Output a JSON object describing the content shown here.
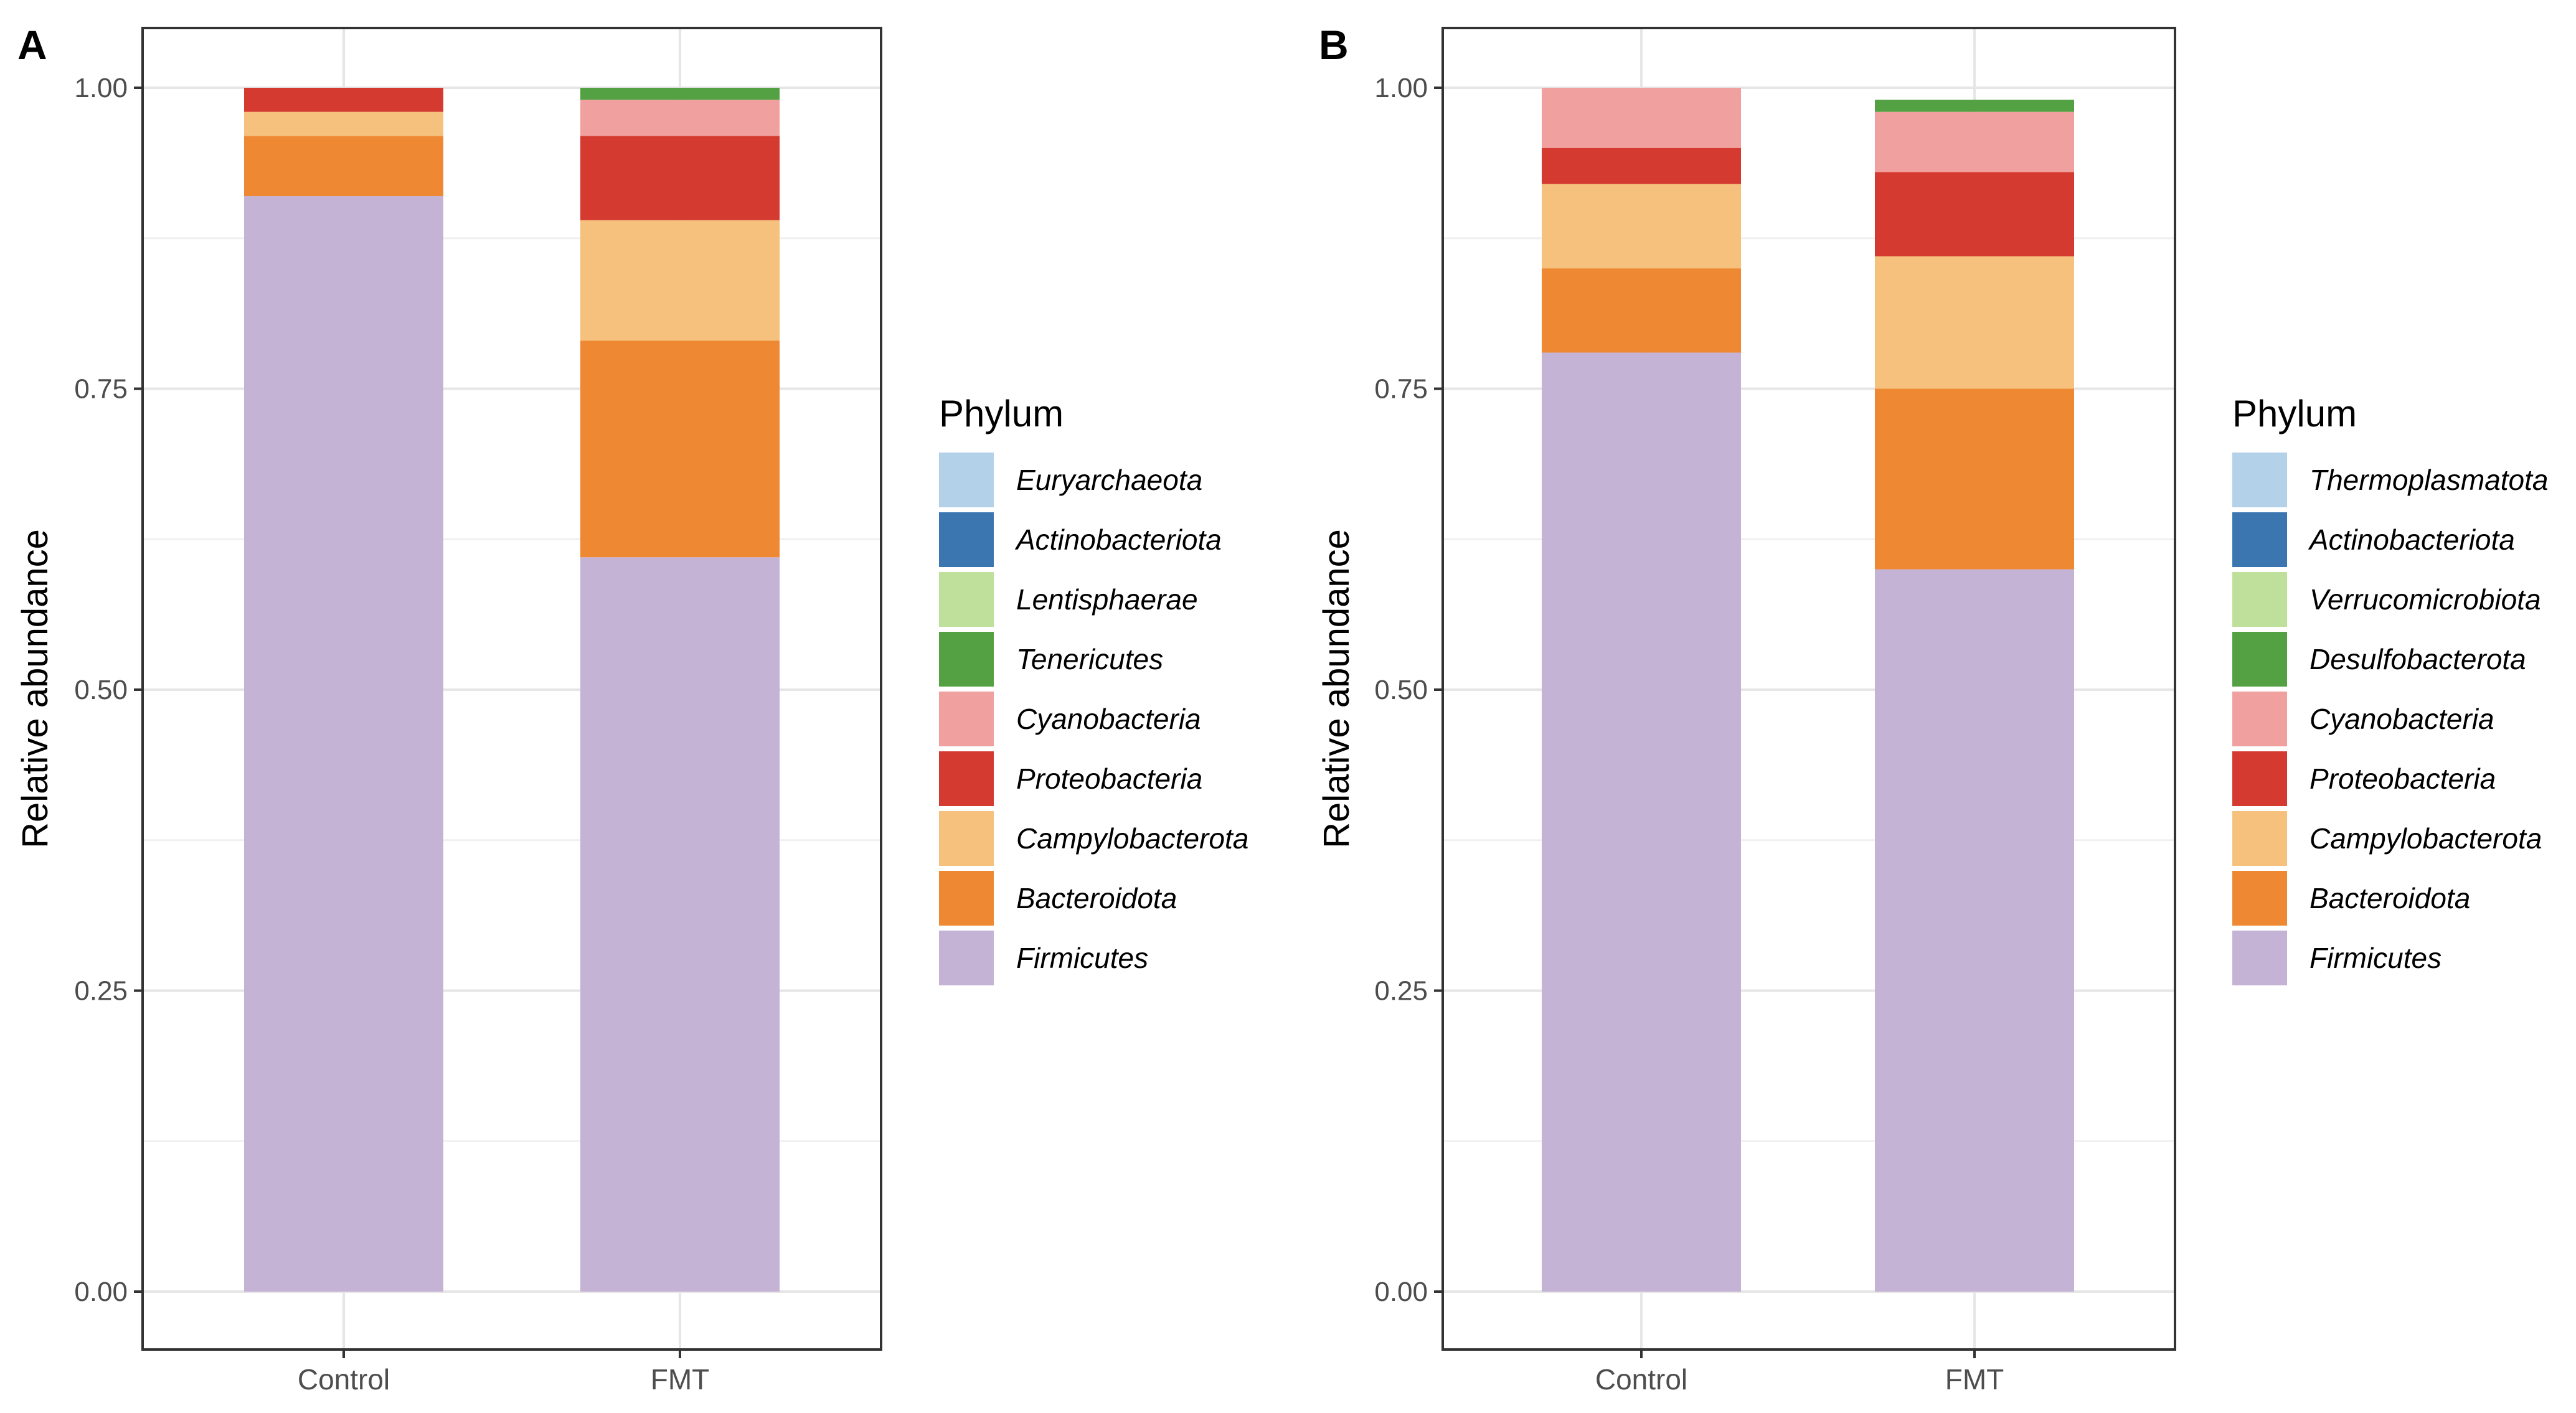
{
  "chart_data": [
    {
      "panel_label": "A",
      "type": "bar",
      "stacked": true,
      "title": "",
      "xlabel": "",
      "ylabel": "Relative abundance",
      "ylim": [
        0,
        1
      ],
      "yticks": [
        "0.00",
        "0.25",
        "0.50",
        "0.75",
        "1.00"
      ],
      "grid": true,
      "legend_position": "right",
      "categories": [
        "Control",
        "FMT"
      ],
      "legend_title": "Phylum",
      "series": [
        {
          "name": "Euryarchaeota",
          "color": "#b3d1e8",
          "values": [
            0.0,
            0.0
          ]
        },
        {
          "name": "Actinobacteriota",
          "color": "#3c76b1",
          "values": [
            0.0,
            0.0
          ]
        },
        {
          "name": "Lentisphaerae",
          "color": "#bfe09b",
          "values": [
            0.0,
            0.0
          ]
        },
        {
          "name": "Tenericutes",
          "color": "#53a143",
          "values": [
            0.0,
            0.01
          ]
        },
        {
          "name": "Cyanobacteria",
          "color": "#f0a09e",
          "values": [
            0.0,
            0.03
          ]
        },
        {
          "name": "Proteobacteria",
          "color": "#d43a2f",
          "values": [
            0.02,
            0.07
          ]
        },
        {
          "name": "Campylobacterota",
          "color": "#f5c17d",
          "values": [
            0.02,
            0.1
          ]
        },
        {
          "name": "Bacteroidota",
          "color": "#ef8833",
          "values": [
            0.05,
            0.18
          ]
        },
        {
          "name": "Firmicutes",
          "color": "#c5b3d6",
          "values": [
            0.91,
            0.61
          ]
        }
      ]
    },
    {
      "panel_label": "B",
      "type": "bar",
      "stacked": true,
      "title": "",
      "xlabel": "",
      "ylabel": "Relative abundance",
      "ylim": [
        0,
        1
      ],
      "yticks": [
        "0.00",
        "0.25",
        "0.50",
        "0.75",
        "1.00"
      ],
      "grid": true,
      "legend_position": "right",
      "categories": [
        "Control",
        "FMT"
      ],
      "legend_title": "Phylum",
      "series": [
        {
          "name": "Thermoplasmatota",
          "color": "#b3d1e8",
          "values": [
            0.0,
            0.0
          ]
        },
        {
          "name": "Actinobacteriota",
          "color": "#3c76b1",
          "values": [
            0.0,
            0.0
          ]
        },
        {
          "name": "Verrucomicrobiota",
          "color": "#bfe09b",
          "values": [
            0.0,
            0.0
          ]
        },
        {
          "name": "Desulfobacterota",
          "color": "#53a143",
          "values": [
            0.0,
            0.01
          ]
        },
        {
          "name": "Cyanobacteria",
          "color": "#f0a09e",
          "values": [
            0.05,
            0.05
          ]
        },
        {
          "name": "Proteobacteria",
          "color": "#d43a2f",
          "values": [
            0.03,
            0.07
          ]
        },
        {
          "name": "Campylobacterota",
          "color": "#f5c17d",
          "values": [
            0.07,
            0.11
          ]
        },
        {
          "name": "Bacteroidota",
          "color": "#ef8833",
          "values": [
            0.07,
            0.15
          ]
        },
        {
          "name": "Firmicutes",
          "color": "#c5b3d6",
          "values": [
            0.78,
            0.6
          ]
        }
      ]
    }
  ]
}
